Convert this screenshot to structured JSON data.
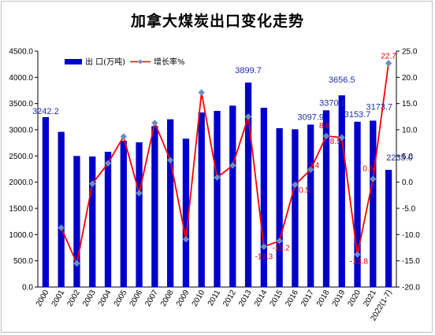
{
  "chart_data": {
    "type": "bar",
    "title": "加拿大煤炭出口变化走势",
    "categories": [
      "2000",
      "2001",
      "2002",
      "2003",
      "2004",
      "2005",
      "2006",
      "2007",
      "2008",
      "2009",
      "2010",
      "2011",
      "2012",
      "2013",
      "2014",
      "2015",
      "2016",
      "2017",
      "2018",
      "2019",
      "2020",
      "2021",
      "2022(1-7)"
    ],
    "series": [
      {
        "name": "出 口(万吨)",
        "type": "bar",
        "axis": "left",
        "color": "#0000cc",
        "values": [
          3242.2,
          2960,
          2500,
          2490,
          2580,
          2790,
          2760,
          3070,
          3200,
          2830,
          3330,
          3360,
          3460,
          3899.7,
          3420,
          3030,
          3010,
          3097.9,
          3370.1,
          3656.5,
          3153.7,
          3173.7,
          2235.0
        ]
      },
      {
        "name": "增长率%",
        "type": "line",
        "axis": "right",
        "color": "#ff0000",
        "marker_color": "#6a8fc4",
        "values": [
          null,
          -8.7,
          -15.5,
          -0.3,
          3.6,
          8.7,
          -2.1,
          11.3,
          4.2,
          -10.9,
          17.1,
          0.9,
          3.2,
          12.5,
          -12.3,
          -11.2,
          -0.5,
          2.4,
          8.8,
          8.5,
          -13.8,
          0.6,
          22.7
        ]
      }
    ],
    "bar_labels": [
      {
        "index": 0,
        "text": "3242.2"
      },
      {
        "index": 13,
        "text": "3899.7"
      },
      {
        "index": 17,
        "text": "3097.9"
      },
      {
        "index": 18,
        "text": "3370.1"
      },
      {
        "index": 19,
        "text": "3656.5"
      },
      {
        "index": 20,
        "text": "3153.7"
      },
      {
        "index": 21,
        "text": "3173.7"
      },
      {
        "index": 22,
        "text": "2235.0"
      }
    ],
    "rate_labels": [
      {
        "index": 14,
        "text": "-12.3"
      },
      {
        "index": 15,
        "text": "-11.2"
      },
      {
        "index": 16,
        "text": "-0.5"
      },
      {
        "index": 17,
        "text": "2.4"
      },
      {
        "index": 18,
        "text": "8.8"
      },
      {
        "index": 19,
        "text": "8.5"
      },
      {
        "index": 20,
        "text": "-13.8"
      },
      {
        "index": 21,
        "text": "0.6"
      },
      {
        "index": 22,
        "text": "22.7"
      }
    ],
    "y_left": {
      "min": 0,
      "max": 4500,
      "step": 500,
      "tick_format": "0.0"
    },
    "y_right": {
      "min": -20,
      "max": 25,
      "step": 5,
      "tick_format": "0.0"
    },
    "legend": {
      "placement": "top-left",
      "labels": [
        "出 口(万吨)",
        "增长率%"
      ]
    },
    "grid": false
  }
}
